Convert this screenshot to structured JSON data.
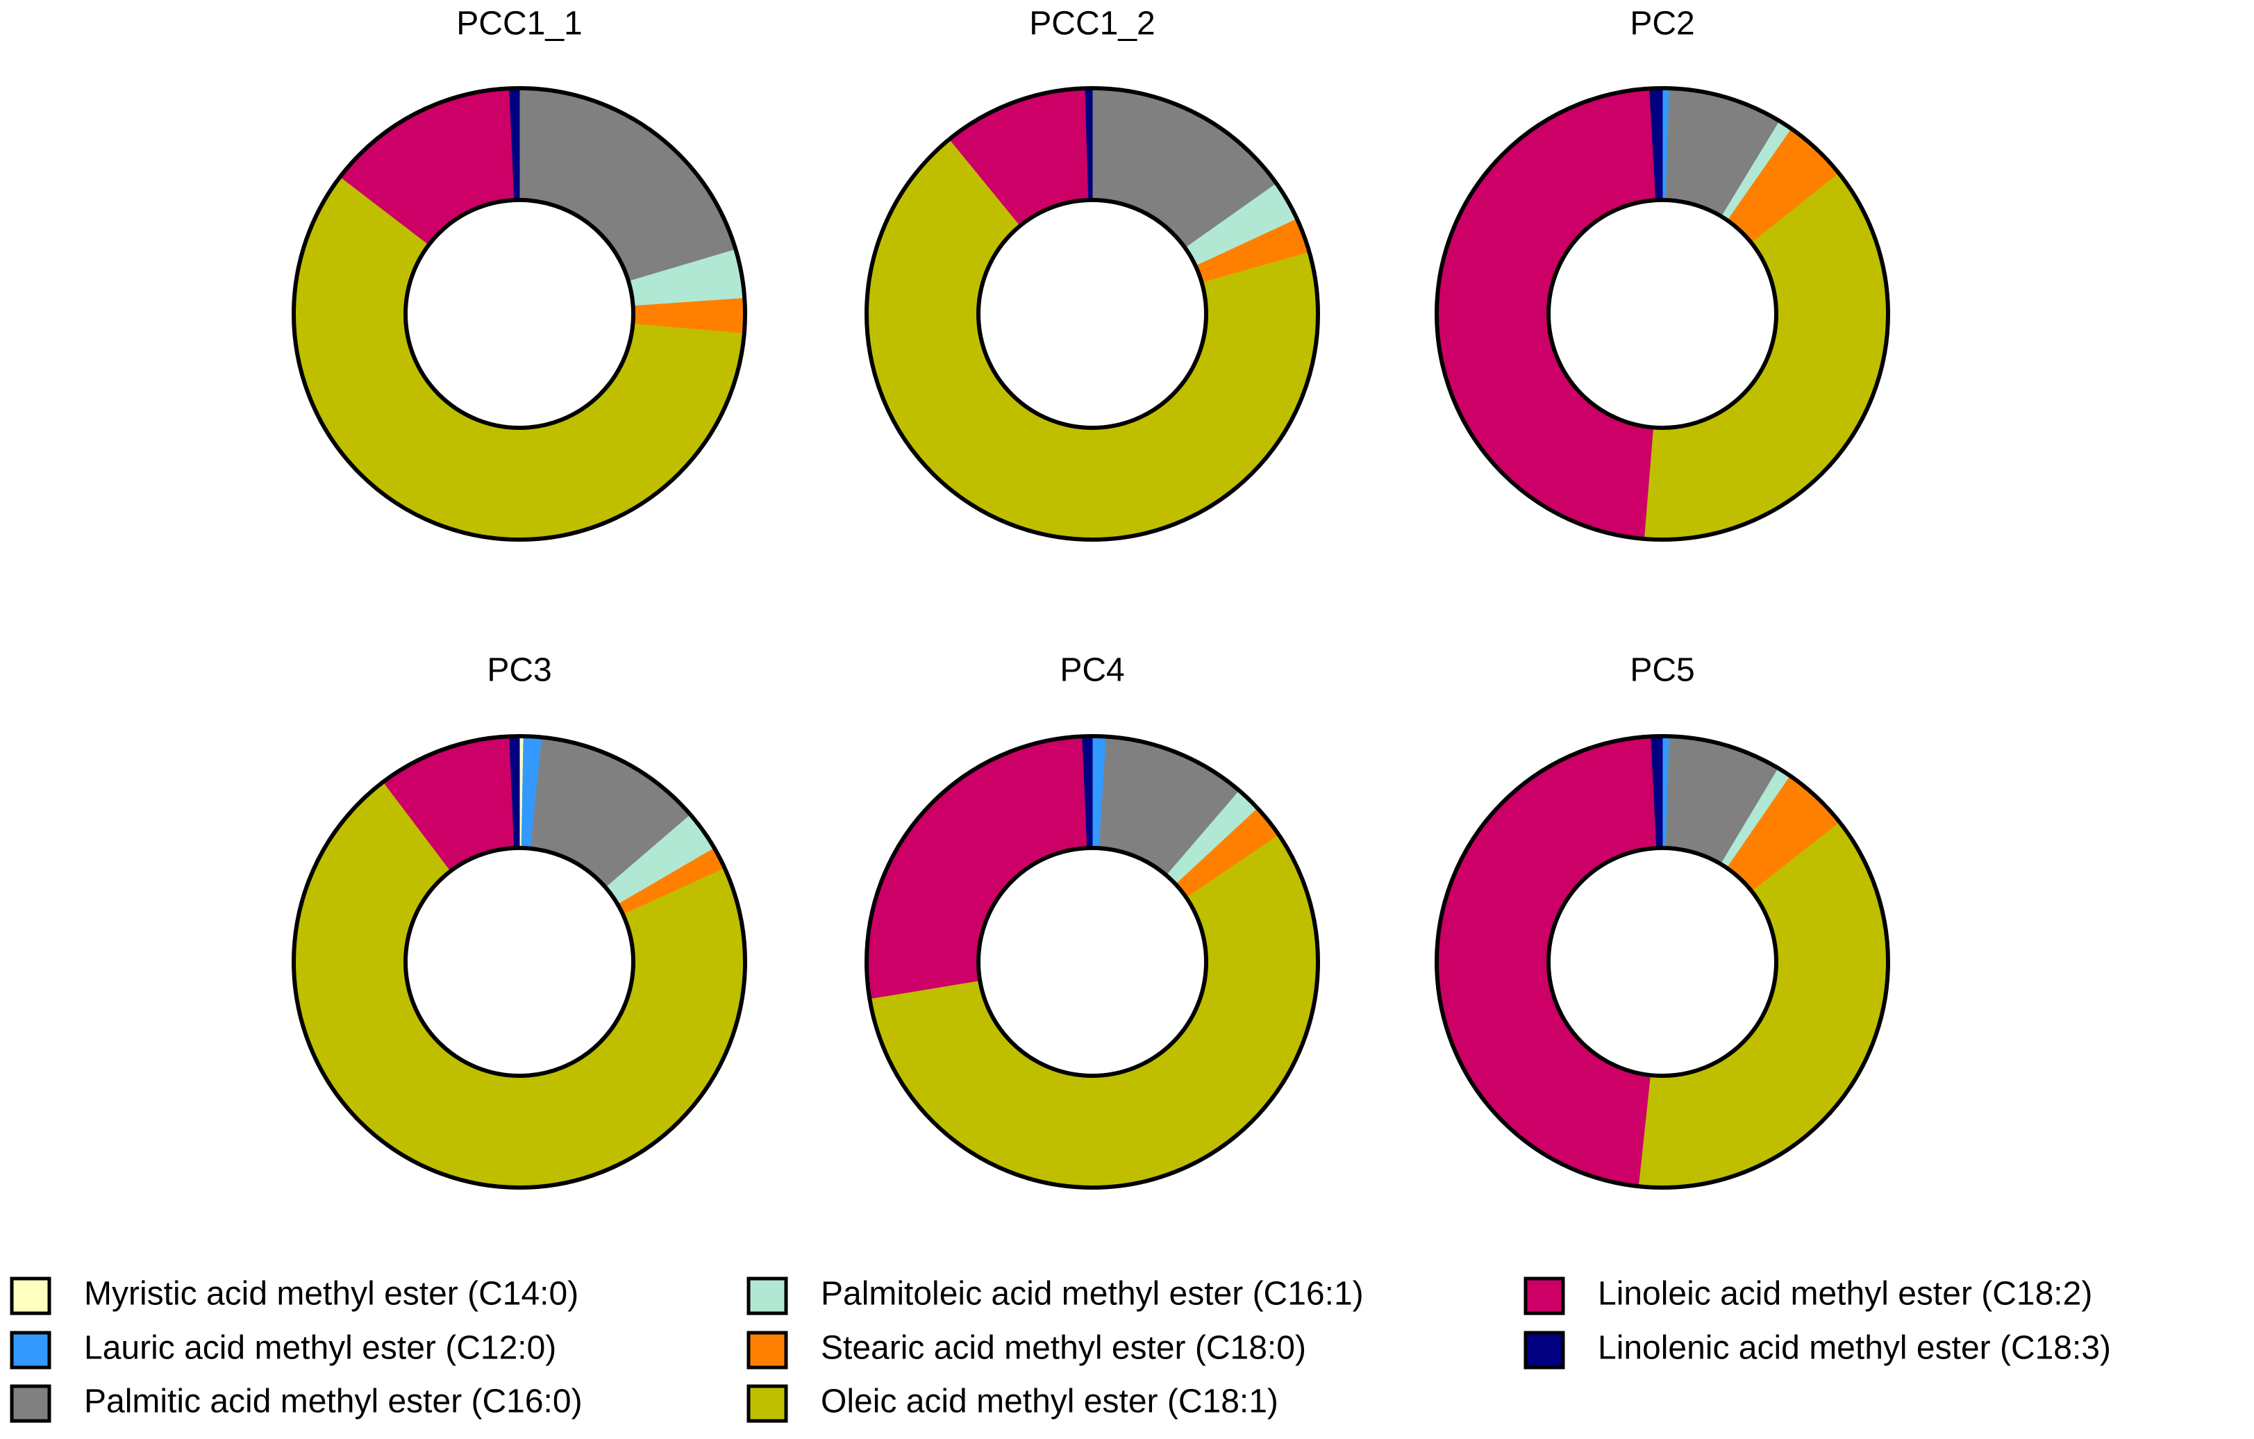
{
  "chart_data": [
    {
      "type": "donut",
      "title": "PCC1_1",
      "values": [
        0,
        0,
        20.4,
        3.5,
        2.5,
        59,
        13.9,
        0.7
      ]
    },
    {
      "type": "donut",
      "title": "PCC1_2",
      "values": [
        0,
        0,
        15.2,
        2.9,
        2.5,
        68.5,
        10.4,
        0.5
      ]
    },
    {
      "type": "donut",
      "title": "PC2",
      "values": [
        0,
        0.5,
        8.2,
        1,
        4.6,
        37,
        47.8,
        0.9
      ]
    },
    {
      "type": "donut",
      "title": "PC3",
      "values": [
        0.3,
        1.3,
        12.1,
        2.9,
        1.6,
        71.5,
        9.6,
        0.7
      ]
    },
    {
      "type": "donut",
      "title": "PC4",
      "values": [
        0,
        1,
        10.3,
        1.8,
        2.4,
        56.9,
        26.9,
        0.7
      ]
    },
    {
      "type": "donut",
      "title": "PC5",
      "values": [
        0,
        0.5,
        8.1,
        1,
        4.8,
        37.3,
        47.5,
        0.8
      ]
    }
  ],
  "legend": {
    "categories": [
      "Myristic acid methyl ester (C14:0)",
      "Lauric acid methyl ester (C12:0)",
      "Palmitic acid methyl ester (C16:0)",
      "Palmitoleic acid methyl ester (C16:1)",
      "Stearic acid methyl ester (C18:0)",
      "Oleic acid methyl ester (C18:1)",
      "Linoleic acid methyl ester (C18:2)",
      "Linolenic acid methyl ester (C18:3)"
    ],
    "colors": [
      "#ffffc0",
      "#3399ff",
      "#808080",
      "#b0e8d4",
      "#ff8000",
      "#bfbf00",
      "#cc0066",
      "#000080"
    ]
  }
}
